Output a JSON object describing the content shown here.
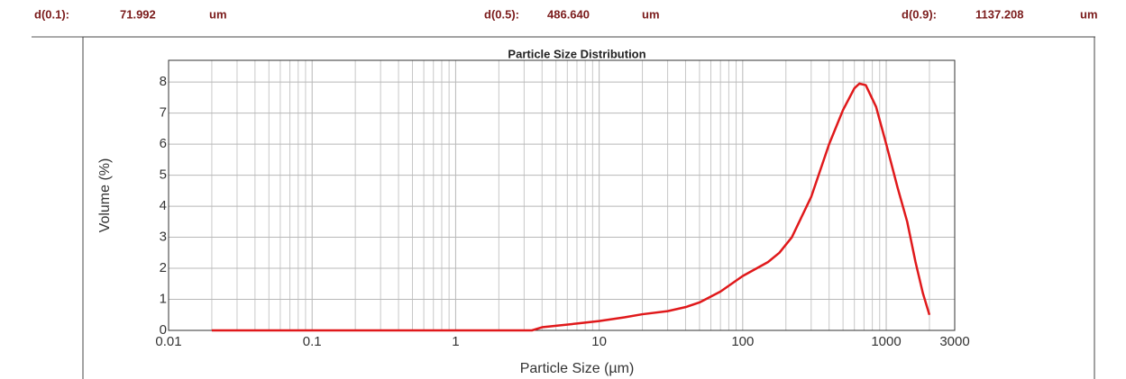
{
  "header": {
    "stats": [
      {
        "label": "d(0.1):",
        "value": "71.992",
        "unit": "um"
      },
      {
        "label": "d(0.5):",
        "value": "486.640",
        "unit": "um"
      },
      {
        "label": "d(0.9):",
        "value": "1137.208",
        "unit": "um"
      }
    ]
  },
  "chart_data": {
    "type": "line",
    "title": "Particle Size Distribution",
    "x_label": "Particle Size (µm)",
    "y_label": "Volume (%)",
    "x": [
      0.02,
      0.1,
      1,
      3.4,
      4,
      5,
      7,
      10,
      15,
      20,
      30,
      40,
      50,
      70,
      100,
      150,
      180,
      220,
      300,
      400,
      500,
      600,
      650,
      720,
      850,
      1000,
      1200,
      1400,
      1600,
      1800,
      2000
    ],
    "values": [
      0,
      0,
      0,
      0,
      0.1,
      0.15,
      0.22,
      0.3,
      0.42,
      0.52,
      0.62,
      0.75,
      0.9,
      1.25,
      1.75,
      2.2,
      2.5,
      3.0,
      4.3,
      6.0,
      7.1,
      7.8,
      7.95,
      7.9,
      7.2,
      6.0,
      4.6,
      3.5,
      2.2,
      1.2,
      0.5
    ],
    "color": "#e0191b",
    "xscale": "log",
    "xlim": [
      0.01,
      3000
    ],
    "xticks": [
      0.01,
      0.1,
      1,
      10,
      100,
      1000,
      3000
    ],
    "ylim": [
      0,
      8.7
    ],
    "yticks": [
      0,
      1,
      2,
      3,
      4,
      5,
      6,
      7,
      8
    ],
    "grid": true
  }
}
